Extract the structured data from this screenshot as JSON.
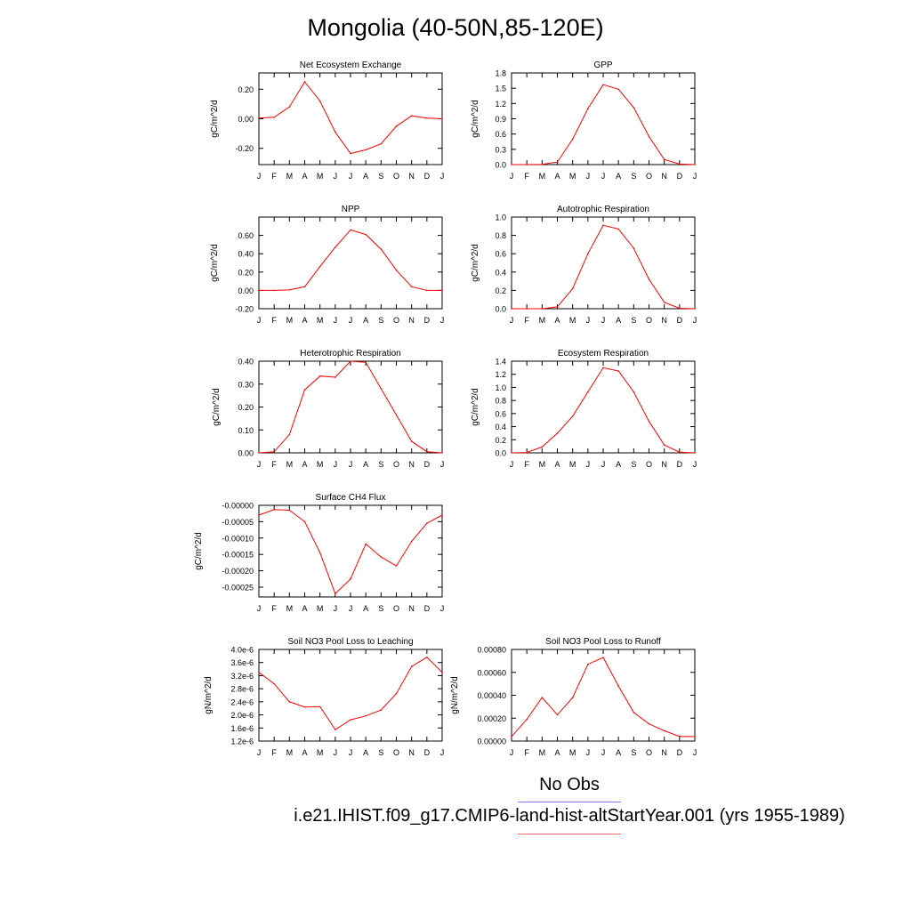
{
  "title": "Mongolia (40-50N,85-120E)",
  "legend": {
    "obs_label": "No Obs",
    "case_label": "i.e21.IHIST.f09_g17.CMIP6-land-hist-altStartYear.001 (yrs 1955-1989)",
    "obs_color": "#0000ff",
    "case_color": "#ff0000"
  },
  "line_color": "#ff0000",
  "chart_data": [
    {
      "type": "line",
      "title": "Net Ecosystem Exchange",
      "ylabel": "gC/m^2/d",
      "categories": [
        "J",
        "F",
        "M",
        "A",
        "M",
        "J",
        "J",
        "A",
        "S",
        "O",
        "N",
        "D",
        "J"
      ],
      "values": [
        0.005,
        0.01,
        0.08,
        0.25,
        0.12,
        -0.09,
        -0.235,
        -0.21,
        -0.17,
        -0.05,
        0.02,
        0.005,
        0.0
      ],
      "ylim": [
        -0.31,
        0.31
      ],
      "yticks": [
        -0.2,
        0.0,
        0.2
      ],
      "yticklabels": [
        "-0.20",
        "0.00",
        "0.20"
      ]
    },
    {
      "type": "line",
      "title": "GPP",
      "ylabel": "gC/m^2/d",
      "categories": [
        "J",
        "F",
        "M",
        "A",
        "M",
        "J",
        "J",
        "A",
        "S",
        "O",
        "N",
        "D",
        "J"
      ],
      "values": [
        0.0,
        0.0,
        0.005,
        0.05,
        0.5,
        1.1,
        1.57,
        1.48,
        1.12,
        0.55,
        0.1,
        0.01,
        0.0
      ],
      "ylim": [
        0,
        1.8
      ],
      "yticks": [
        0.0,
        0.3,
        0.6,
        0.9,
        1.2,
        1.5,
        1.8
      ],
      "yticklabels": [
        "0.0",
        "0.3",
        "0.6",
        "0.9",
        "1.2",
        "1.5",
        "1.8"
      ]
    },
    {
      "type": "line",
      "title": "NPP",
      "ylabel": "gC/m^2/d",
      "categories": [
        "J",
        "F",
        "M",
        "A",
        "M",
        "J",
        "J",
        "A",
        "S",
        "O",
        "N",
        "D",
        "J"
      ],
      "values": [
        0.0,
        0.0,
        0.005,
        0.04,
        0.26,
        0.47,
        0.66,
        0.61,
        0.45,
        0.22,
        0.04,
        0.0,
        0.0
      ],
      "ylim": [
        -0.2,
        0.8
      ],
      "yticks": [
        -0.2,
        0.0,
        0.2,
        0.4,
        0.6
      ],
      "yticklabels": [
        "-0.20",
        "0.00",
        "0.20",
        "0.40",
        "0.60"
      ]
    },
    {
      "type": "line",
      "title": "Autotrophic Respiration",
      "ylabel": "gC/m^2/d",
      "categories": [
        "J",
        "F",
        "M",
        "A",
        "M",
        "J",
        "J",
        "A",
        "S",
        "O",
        "N",
        "D",
        "J"
      ],
      "values": [
        0.0,
        0.0,
        0.0,
        0.02,
        0.22,
        0.6,
        0.91,
        0.87,
        0.66,
        0.32,
        0.07,
        0.005,
        0.0
      ],
      "ylim": [
        0,
        1.0
      ],
      "yticks": [
        0.0,
        0.2,
        0.4,
        0.6,
        0.8,
        1.0
      ],
      "yticklabels": [
        "0.0",
        "0.2",
        "0.4",
        "0.6",
        "0.8",
        "1.0"
      ]
    },
    {
      "type": "line",
      "title": "Heterotrophic Respiration",
      "ylabel": "gC/m^2/d",
      "categories": [
        "J",
        "F",
        "M",
        "A",
        "M",
        "J",
        "J",
        "A",
        "S",
        "O",
        "N",
        "D",
        "J"
      ],
      "values": [
        0.0,
        0.005,
        0.08,
        0.275,
        0.335,
        0.33,
        0.4,
        0.395,
        0.28,
        0.165,
        0.05,
        0.005,
        0.0
      ],
      "ylim": [
        0,
        0.4
      ],
      "yticks": [
        0.0,
        0.1,
        0.2,
        0.3,
        0.4
      ],
      "yticklabels": [
        "0.00",
        "0.10",
        "0.20",
        "0.30",
        "0.40"
      ]
    },
    {
      "type": "line",
      "title": "Ecosystem Respiration",
      "ylabel": "gC/m^2/d",
      "categories": [
        "J",
        "F",
        "M",
        "A",
        "M",
        "J",
        "J",
        "A",
        "S",
        "O",
        "N",
        "D",
        "J"
      ],
      "values": [
        0.0,
        0.005,
        0.09,
        0.3,
        0.56,
        0.93,
        1.3,
        1.25,
        0.93,
        0.48,
        0.12,
        0.01,
        0.0
      ],
      "ylim": [
        0,
        1.4
      ],
      "yticks": [
        0.0,
        0.2,
        0.4,
        0.6,
        0.8,
        1.0,
        1.2,
        1.4
      ],
      "yticklabels": [
        "0.0",
        "0.2",
        "0.4",
        "0.6",
        "0.8",
        "1.0",
        "1.2",
        "1.4"
      ]
    },
    {
      "type": "line",
      "title": "Surface CH4 Flux",
      "ylabel": "gC/m^2/d",
      "categories": [
        "J",
        "F",
        "M",
        "A",
        "M",
        "J",
        "J",
        "A",
        "S",
        "O",
        "N",
        "D",
        "J"
      ],
      "values": [
        -3e-05,
        -1.3e-05,
        -1.5e-05,
        -5e-05,
        -0.000145,
        -0.00027,
        -0.000225,
        -0.000118,
        -0.000158,
        -0.000185,
        -0.00011,
        -5.5e-05,
        -3e-05
      ],
      "ylim": [
        -0.00028,
        0
      ],
      "yticks": [
        0,
        -5e-05,
        -0.0001,
        -0.00015,
        -0.0002,
        -0.00025
      ],
      "yticklabels": [
        "-0.00000",
        "-0.00005",
        "-0.00010",
        "-0.00015",
        "-0.00020",
        "-0.00025"
      ]
    },
    {
      "type": "line",
      "title": "Soil NO3 Pool Loss to Leaching",
      "ylabel": "gN/m^2/d",
      "categories": [
        "J",
        "F",
        "M",
        "A",
        "M",
        "J",
        "J",
        "A",
        "S",
        "O",
        "N",
        "D",
        "J"
      ],
      "values": [
        3.3e-06,
        2.95e-06,
        2.4e-06,
        2.24e-06,
        2.25e-06,
        1.55e-06,
        1.85e-06,
        1.97e-06,
        2.15e-06,
        2.65e-06,
        3.48e-06,
        3.76e-06,
        3.3e-06
      ],
      "ylim": [
        1.2e-06,
        4e-06
      ],
      "yticks": [
        1.2e-06,
        1.6e-06,
        2e-06,
        2.4e-06,
        2.8e-06,
        3.2e-06,
        3.6e-06,
        4e-06
      ],
      "yticklabels": [
        "1.2e-6",
        "1.6e-6",
        "2.0e-6",
        "2.4e-6",
        "2.8e-6",
        "3.2e-6",
        "3.6e-6",
        "4.0e-6"
      ]
    },
    {
      "type": "line",
      "title": "Soil NO3 Pool Loss to Runoff",
      "ylabel": "gN/m^2/d",
      "categories": [
        "J",
        "F",
        "M",
        "A",
        "M",
        "J",
        "J",
        "A",
        "S",
        "O",
        "N",
        "D",
        "J"
      ],
      "values": [
        4e-05,
        0.00019,
        0.00038,
        0.00023,
        0.00038,
        0.00067,
        0.00073,
        0.00048,
        0.00025,
        0.00015,
        9e-05,
        4e-05,
        4e-05
      ],
      "ylim": [
        0,
        0.0008
      ],
      "yticks": [
        0,
        0.0002,
        0.0004,
        0.0006,
        0.0008
      ],
      "yticklabels": [
        "0.00000",
        "0.00020",
        "0.00040",
        "0.00060",
        "0.00080"
      ]
    }
  ]
}
